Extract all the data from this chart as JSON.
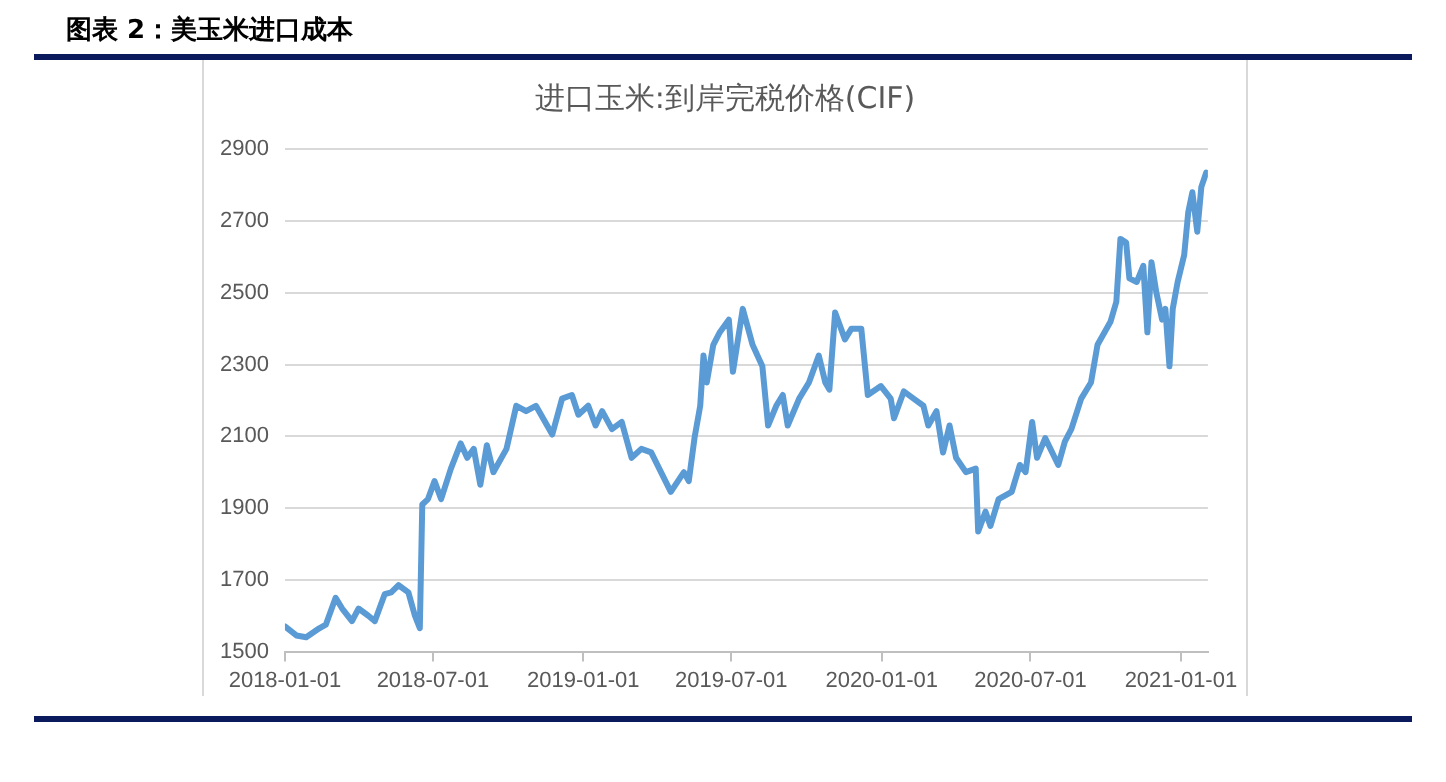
{
  "chart_data": {
    "type": "line",
    "title": "图表 2：美玉米进口成本",
    "subtitle": "进口玉米:到岸完税价格(CIF)",
    "x": [
      "2018-01-01",
      "2018-01-15",
      "2018-01-27",
      "2018-02-12",
      "2018-02-20",
      "2018-03-04",
      "2018-03-12",
      "2018-03-24",
      "2018-04-01",
      "2018-04-13",
      "2018-04-21",
      "2018-05-03",
      "2018-05-11",
      "2018-05-20",
      "2018-06-01",
      "2018-06-09",
      "2018-06-15",
      "2018-06-18",
      "2018-06-25",
      "2018-07-03",
      "2018-07-11",
      "2018-07-23",
      "2018-08-04",
      "2018-08-12",
      "2018-08-20",
      "2018-08-28",
      "2018-09-05",
      "2018-09-13",
      "2018-09-29",
      "2018-10-11",
      "2018-10-23",
      "2018-11-04",
      "2018-11-24",
      "2018-12-06",
      "2018-12-18",
      "2018-12-26",
      "2019-01-07",
      "2019-01-16",
      "2019-01-24",
      "2019-02-05",
      "2019-02-17",
      "2019-03-01",
      "2019-03-13",
      "2019-03-25",
      "2019-04-06",
      "2019-04-18",
      "2019-05-04",
      "2019-05-10",
      "2019-05-17",
      "2019-05-24",
      "2019-05-28",
      "2019-06-01",
      "2019-06-09",
      "2019-06-17",
      "2019-06-28",
      "2019-07-03",
      "2019-07-15",
      "2019-07-27",
      "2019-08-08",
      "2019-08-15",
      "2019-08-25",
      "2019-09-02",
      "2019-09-08",
      "2019-09-22",
      "2019-10-04",
      "2019-10-16",
      "2019-10-24",
      "2019-10-29",
      "2019-11-05",
      "2019-11-17",
      "2019-11-25",
      "2019-12-07",
      "2019-12-15",
      "2019-12-31",
      "2020-01-12",
      "2020-01-16",
      "2020-01-28",
      "2020-02-09",
      "2020-02-21",
      "2020-02-27",
      "2020-03-08",
      "2020-03-16",
      "2020-03-24",
      "2020-04-01",
      "2020-04-13",
      "2020-04-25",
      "2020-04-28",
      "2020-05-07",
      "2020-05-13",
      "2020-05-23",
      "2020-06-08",
      "2020-06-18",
      "2020-06-25",
      "2020-07-03",
      "2020-07-09",
      "2020-07-19",
      "2020-08-04",
      "2020-08-12",
      "2020-08-20",
      "2020-09-01",
      "2020-09-13",
      "2020-09-21",
      "2020-10-07",
      "2020-10-14",
      "2020-10-19",
      "2020-10-26",
      "2020-10-30",
      "2020-11-08",
      "2020-11-16",
      "2020-11-21",
      "2020-11-26",
      "2020-12-02",
      "2020-12-09",
      "2020-12-13",
      "2020-12-18",
      "2020-12-22",
      "2020-12-28",
      "2021-01-05",
      "2021-01-10",
      "2021-01-15",
      "2021-01-21",
      "2021-01-26",
      "2021-02-01"
    ],
    "series": [
      {
        "color": "#5b9bd5",
        "values": [
          1570,
          1545,
          1540,
          1565,
          1575,
          1650,
          1620,
          1585,
          1620,
          1600,
          1585,
          1660,
          1665,
          1685,
          1665,
          1600,
          1565,
          1910,
          1925,
          1975,
          1925,
          2010,
          2080,
          2040,
          2065,
          1965,
          2075,
          2000,
          2065,
          2185,
          2170,
          2185,
          2105,
          2205,
          2215,
          2160,
          2185,
          2130,
          2170,
          2120,
          2140,
          2040,
          2065,
          2055,
          2000,
          1945,
          2000,
          1975,
          2095,
          2185,
          2325,
          2250,
          2355,
          2390,
          2425,
          2280,
          2455,
          2355,
          2295,
          2130,
          2185,
          2215,
          2130,
          2205,
          2250,
          2325,
          2250,
          2230,
          2445,
          2370,
          2400,
          2400,
          2215,
          2240,
          2205,
          2150,
          2225,
          2205,
          2185,
          2130,
          2170,
          2055,
          2130,
          2040,
          2000,
          2010,
          1835,
          1890,
          1850,
          1925,
          1945,
          2020,
          2000,
          2140,
          2040,
          2095,
          2020,
          2085,
          2120,
          2205,
          2250,
          2355,
          2420,
          2475,
          2650,
          2640,
          2540,
          2530,
          2575,
          2390,
          2585,
          2500,
          2425,
          2455,
          2295,
          2455,
          2530,
          2605,
          2725,
          2780,
          2670,
          2795,
          2835
        ]
      }
    ],
    "xlim": [
      "2018-01-01",
      "2021-02-03"
    ],
    "xticks": [
      "2018-01-01",
      "2018-07-01",
      "2019-01-01",
      "2019-07-01",
      "2020-01-01",
      "2020-07-01",
      "2021-01-01"
    ],
    "ylim": [
      1500,
      2900
    ],
    "yticks": [
      1500,
      1700,
      1900,
      2100,
      2300,
      2500,
      2700,
      2900
    ],
    "grid": "y",
    "marker": "none",
    "line_style": "solid",
    "legend": false
  }
}
